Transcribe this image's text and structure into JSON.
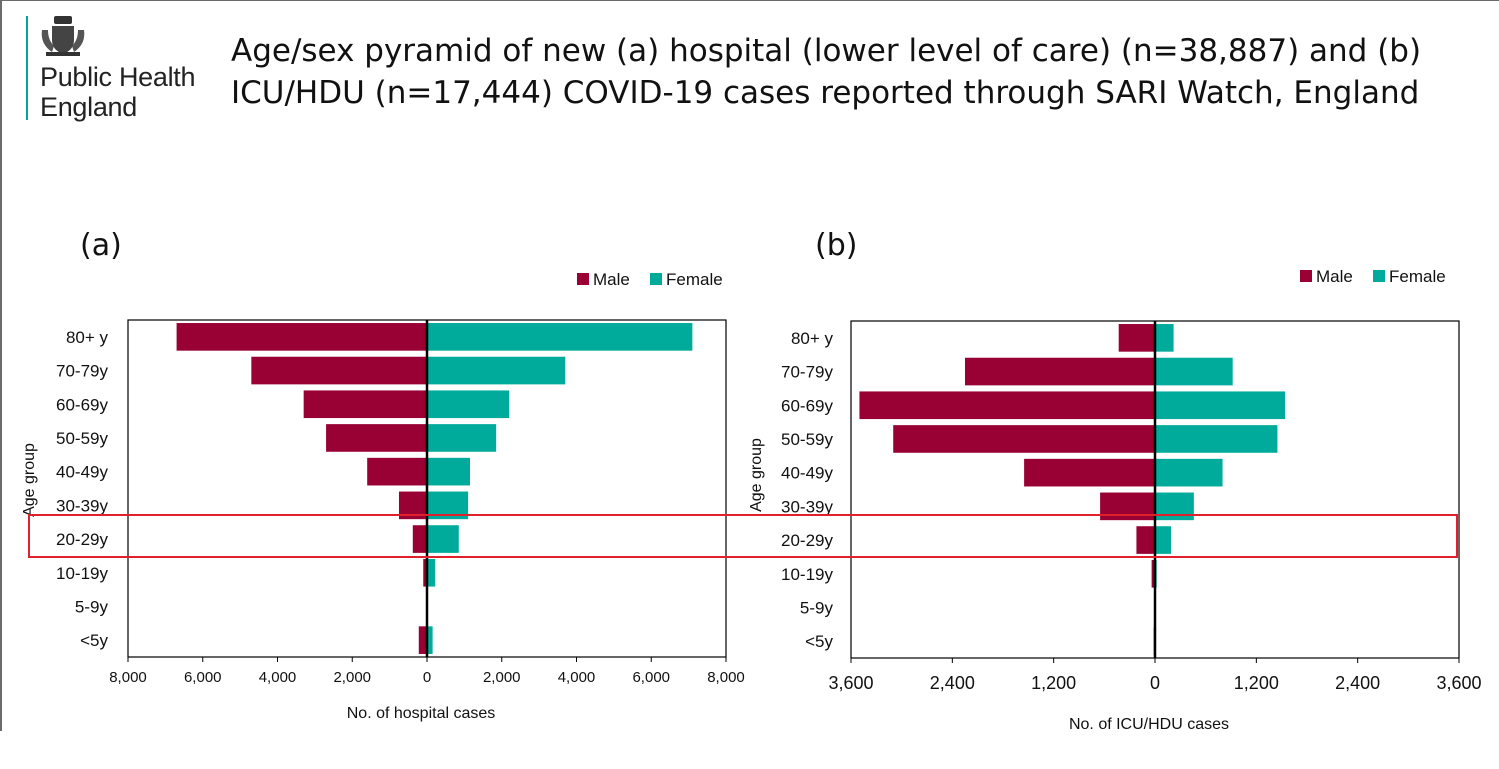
{
  "logo": {
    "line1": "Public Health",
    "line2": "England"
  },
  "title": {
    "line1": "Age/sex pyramid of new (a) hospital (lower level of care) (n=38,887) and (b)",
    "line2": "ICU/HDU (n=17,444) COVID-19 cases reported through SARI Watch, England"
  },
  "colors": {
    "male": "#990033",
    "female": "#00ab9c",
    "highlight": "#e0202c"
  },
  "chart_data": [
    {
      "type": "bar",
      "panel_label": "(a)",
      "orientation": "horizontal-pyramid",
      "categories": [
        "80+ y",
        "70-79y",
        "60-69y",
        "50-59y",
        "40-49y",
        "30-39y",
        "20-29y",
        "10-19y",
        "5-9y",
        "<5y"
      ],
      "series": [
        {
          "name": "Male",
          "values": [
            6700,
            4700,
            3300,
            2700,
            1600,
            750,
            380,
            100,
            20,
            220
          ]
        },
        {
          "name": "Female",
          "values": [
            7100,
            3700,
            2200,
            1850,
            1150,
            1100,
            850,
            220,
            20,
            150
          ]
        }
      ],
      "legend": [
        "Male",
        "Female"
      ],
      "xlabel": "No. of hospital cases",
      "ylabel": "Age group",
      "xlim": [
        -8000,
        8000
      ],
      "xticks": [
        "8,000",
        "6,000",
        "4,000",
        "2,000",
        "0",
        "2,000",
        "4,000",
        "6,000",
        "8,000"
      ]
    },
    {
      "type": "bar",
      "panel_label": "(b)",
      "orientation": "horizontal-pyramid",
      "categories": [
        "80+ y",
        "70-79y",
        "60-69y",
        "50-59y",
        "40-49y",
        "30-39y",
        "20-29y",
        "10-19y",
        "5-9y",
        "<5y"
      ],
      "series": [
        {
          "name": "Male",
          "values": [
            430,
            2250,
            3500,
            3100,
            1550,
            650,
            220,
            40,
            5,
            15
          ]
        },
        {
          "name": "Female",
          "values": [
            220,
            920,
            1540,
            1450,
            800,
            460,
            190,
            20,
            5,
            10
          ]
        }
      ],
      "legend": [
        "Male",
        "Female"
      ],
      "xlabel": "No. of ICU/HDU cases",
      "ylabel": "Age group",
      "xlim": [
        -3600,
        3600
      ],
      "xticks": [
        "3,600",
        "2,400",
        "1,200",
        "0",
        "1,200",
        "2,400",
        "3,600"
      ]
    }
  ]
}
